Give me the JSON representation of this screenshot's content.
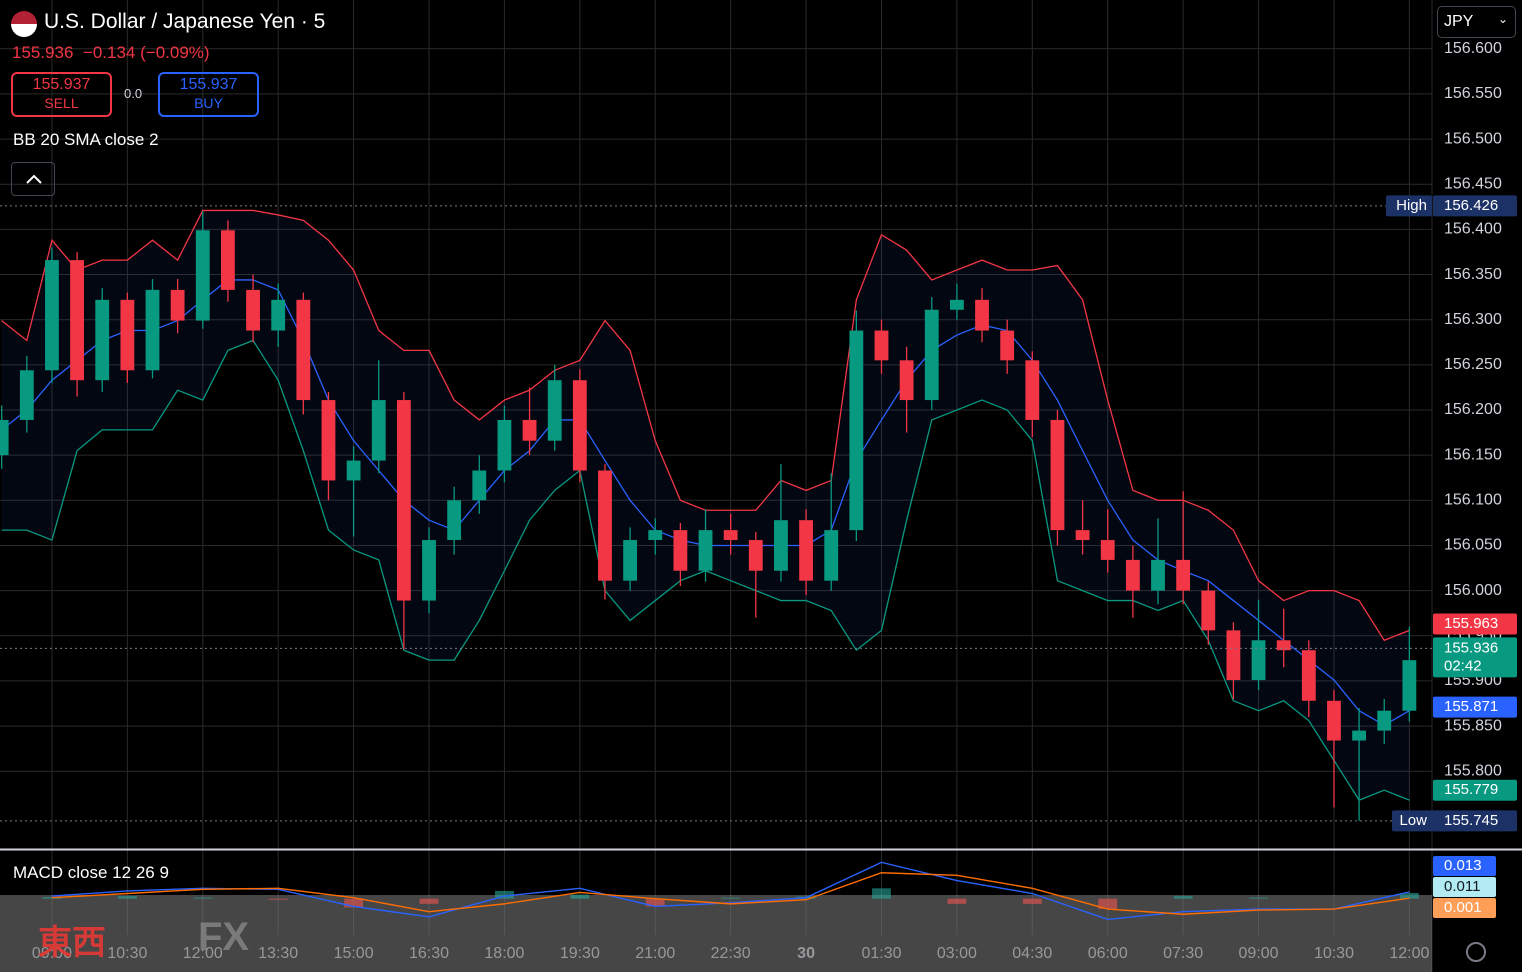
{
  "chart_data": {
    "type": "candlestick",
    "title": "U.S. Dollar / Japanese Yen · 5",
    "last_price": 155.936,
    "change_text": "−0.134 (−0.09%)",
    "sell_price": 155.937,
    "sell_label": "SELL",
    "spread": {
      "value": 0,
      "label": "0.0"
    },
    "buy_price": 155.937,
    "buy_label": "BUY",
    "indicator_label": "BB 20 SMA close 2",
    "currency": "JPY",
    "watermark": [
      "東西",
      "FX"
    ],
    "xlim": [
      -12.4,
      329.4
    ],
    "xticks": [
      {
        "value": 0,
        "label": "09:00"
      },
      {
        "value": 18,
        "label": "10:30"
      },
      {
        "value": 36,
        "label": "12:00"
      },
      {
        "value": 54,
        "label": "13:30"
      },
      {
        "value": 72,
        "label": "15:00"
      },
      {
        "value": 90,
        "label": "16:30"
      },
      {
        "value": 108,
        "label": "18:00"
      },
      {
        "value": 126,
        "label": "19:30"
      },
      {
        "value": 144,
        "label": "21:00"
      },
      {
        "value": 162,
        "label": "22:30"
      },
      {
        "value": 180,
        "label": "30"
      },
      {
        "value": 198,
        "label": "01:30"
      },
      {
        "value": 216,
        "label": "03:00"
      },
      {
        "value": 234,
        "label": "04:30"
      },
      {
        "value": 252,
        "label": "06:00"
      },
      {
        "value": 270,
        "label": "07:30"
      },
      {
        "value": 288,
        "label": "09:00"
      },
      {
        "value": 306,
        "label": "10:30"
      },
      {
        "value": 324,
        "label": "12:00"
      }
    ],
    "ylim": [
      155.715,
      156.654
    ],
    "yticks": [
      {
        "value": 156.6,
        "label": "156.600"
      },
      {
        "value": 156.55,
        "label": "156.550"
      },
      {
        "value": 156.5,
        "label": "156.500"
      },
      {
        "value": 156.45,
        "label": "156.450"
      },
      {
        "value": 156.4,
        "label": "156.400"
      },
      {
        "value": 156.35,
        "label": "156.350"
      },
      {
        "value": 156.3,
        "label": "156.300"
      },
      {
        "value": 156.25,
        "label": "156.250"
      },
      {
        "value": 156.2,
        "label": "156.200"
      },
      {
        "value": 156.15,
        "label": "156.150"
      },
      {
        "value": 156.1,
        "label": "156.100"
      },
      {
        "value": 156.05,
        "label": "156.050"
      },
      {
        "value": 156.0,
        "label": "156.000"
      },
      {
        "value": 155.95,
        "label": "155.950"
      },
      {
        "value": 155.9,
        "label": "155.900"
      },
      {
        "value": 155.85,
        "label": "155.850"
      },
      {
        "value": 155.8,
        "label": "155.800"
      }
    ],
    "grid": true,
    "up_color": "#089981",
    "down_color": "#f23645",
    "candles": {
      "x": [
        -12,
        -6,
        0,
        6,
        12,
        18,
        24,
        30,
        36,
        42,
        48,
        54,
        60,
        66,
        72,
        78,
        84,
        90,
        96,
        102,
        108,
        114,
        120,
        126,
        132,
        138,
        144,
        150,
        156,
        162,
        168,
        174,
        180,
        186,
        192,
        198,
        204,
        210,
        216,
        222,
        228,
        234,
        240,
        246,
        252,
        258,
        264,
        270,
        276,
        282,
        288,
        294,
        300,
        306,
        312,
        318,
        324
      ],
      "open": [
        156.15,
        156.189,
        156.244,
        156.366,
        156.233,
        156.322,
        156.244,
        156.333,
        156.299,
        156.399,
        156.333,
        156.288,
        156.322,
        156.211,
        156.122,
        156.144,
        156.211,
        155.989,
        156.056,
        156.1,
        156.133,
        156.189,
        156.166,
        156.233,
        156.133,
        156.011,
        156.056,
        156.067,
        156.022,
        156.067,
        156.056,
        156.022,
        156.078,
        156.011,
        156.067,
        156.288,
        156.255,
        156.211,
        156.311,
        156.322,
        156.288,
        156.255,
        156.189,
        156.067,
        156.056,
        156.034,
        156.0,
        156.034,
        156.0,
        155.956,
        155.901,
        155.945,
        155.934,
        155.878,
        155.834,
        155.845,
        155.867
      ],
      "high": [
        156.205,
        156.26,
        156.38,
        156.375,
        156.335,
        156.33,
        156.345,
        156.345,
        156.42,
        156.41,
        156.35,
        156.34,
        156.33,
        156.22,
        156.16,
        156.255,
        156.22,
        156.07,
        156.115,
        156.15,
        156.205,
        156.225,
        156.25,
        156.245,
        156.14,
        156.07,
        156.08,
        156.075,
        156.09,
        156.085,
        156.065,
        156.14,
        156.09,
        156.13,
        156.31,
        156.3,
        156.27,
        156.325,
        156.34,
        156.335,
        156.3,
        156.265,
        156.2,
        156.1,
        156.09,
        156.05,
        156.08,
        156.11,
        156.01,
        155.965,
        155.99,
        155.98,
        155.945,
        155.89,
        155.87,
        155.88,
        155.96
      ],
      "low": [
        156.135,
        156.175,
        156.23,
        156.215,
        156.22,
        156.23,
        156.235,
        156.285,
        156.29,
        156.32,
        156.275,
        156.27,
        156.195,
        156.1,
        156.06,
        156.13,
        155.935,
        155.975,
        156.04,
        156.085,
        156.12,
        156.15,
        156.155,
        156.12,
        155.99,
        156.0,
        156.04,
        156.005,
        156.01,
        156.04,
        155.97,
        156.01,
        155.995,
        156.0,
        156.055,
        156.24,
        156.175,
        156.2,
        156.3,
        156.275,
        156.24,
        156.17,
        156.05,
        156.04,
        156.02,
        155.97,
        155.985,
        155.985,
        155.94,
        155.88,
        155.89,
        155.915,
        155.86,
        155.76,
        155.745,
        155.83,
        155.855
      ],
      "close": [
        156.189,
        156.244,
        156.366,
        156.233,
        156.322,
        156.244,
        156.333,
        156.299,
        156.399,
        156.333,
        156.288,
        156.322,
        156.211,
        156.122,
        156.144,
        156.211,
        155.989,
        156.056,
        156.1,
        156.133,
        156.189,
        156.166,
        156.233,
        156.133,
        156.011,
        156.056,
        156.067,
        156.022,
        156.067,
        156.056,
        156.022,
        156.078,
        156.011,
        156.067,
        156.288,
        156.255,
        156.211,
        156.311,
        156.322,
        156.288,
        156.255,
        156.189,
        156.067,
        156.056,
        156.034,
        156.0,
        156.034,
        156.0,
        155.956,
        155.901,
        155.945,
        155.934,
        155.878,
        155.834,
        155.845,
        155.867,
        155.923
      ]
    },
    "bands": {
      "upper_color": "#f23645",
      "basis_color": "#2962ff",
      "lower_color": "#089981",
      "upper": [
        156.299,
        156.277,
        156.388,
        156.355,
        156.366,
        156.366,
        156.388,
        156.366,
        156.421,
        156.421,
        156.421,
        156.416,
        156.41,
        156.388,
        156.355,
        156.288,
        156.266,
        156.266,
        156.211,
        156.189,
        156.211,
        156.222,
        156.244,
        156.255,
        156.299,
        156.266,
        156.166,
        156.1,
        156.089,
        156.089,
        156.089,
        156.122,
        156.111,
        156.122,
        156.322,
        156.394,
        156.377,
        156.344,
        156.355,
        156.366,
        156.355,
        156.355,
        156.36,
        156.322,
        156.211,
        156.111,
        156.1,
        156.1,
        156.089,
        156.067,
        156.011,
        155.989,
        156.0,
        156.0,
        155.989,
        155.945,
        155.956
      ],
      "basis": [
        156.178,
        156.2,
        156.233,
        156.255,
        156.277,
        156.288,
        156.288,
        156.299,
        156.322,
        156.344,
        156.344,
        156.333,
        156.277,
        156.211,
        156.166,
        156.133,
        156.1,
        156.078,
        156.067,
        156.1,
        156.133,
        156.155,
        156.189,
        156.189,
        156.144,
        156.1,
        156.067,
        156.056,
        156.05,
        156.05,
        156.05,
        156.05,
        156.05,
        156.067,
        156.144,
        156.189,
        156.233,
        156.266,
        156.283,
        156.294,
        156.288,
        156.255,
        156.211,
        156.155,
        156.1,
        156.056,
        156.034,
        156.022,
        156.011,
        155.989,
        155.967,
        155.945,
        155.923,
        155.901,
        155.867,
        155.851,
        155.867
      ],
      "lower": [
        156.067,
        156.067,
        156.056,
        156.155,
        156.178,
        156.178,
        156.178,
        156.222,
        156.211,
        156.266,
        156.277,
        156.233,
        156.155,
        156.067,
        156.045,
        156.034,
        155.934,
        155.923,
        155.923,
        155.967,
        156.022,
        156.078,
        156.111,
        156.133,
        156.0,
        155.967,
        155.989,
        156.011,
        156.022,
        156.011,
        156.0,
        155.989,
        155.989,
        155.978,
        155.934,
        155.956,
        156.078,
        156.189,
        156.2,
        156.211,
        156.2,
        156.166,
        156.011,
        156.0,
        155.989,
        155.989,
        155.978,
        155.989,
        155.945,
        155.878,
        155.867,
        155.878,
        155.856,
        155.812,
        155.768,
        155.779,
        155.768
      ]
    },
    "price_badges": [
      {
        "value": 156.426,
        "tag": "High",
        "color": "#1c3166",
        "line": true
      },
      {
        "value": 155.963,
        "color": "#f23645",
        "line": false
      },
      {
        "value": 155.936,
        "sub": "02:42",
        "color": "#089981",
        "line": true
      },
      {
        "value": 155.871,
        "color": "#2962ff",
        "line": false
      },
      {
        "value": 155.779,
        "color": "#089981",
        "line": false
      },
      {
        "value": 155.745,
        "tag": "Low",
        "color": "#1c3166",
        "line": true
      }
    ],
    "macd": {
      "label": "MACD close 12 26 9",
      "ylim": [
        -0.07,
        0.09
      ],
      "x": [
        0,
        18,
        36,
        54,
        72,
        90,
        108,
        126,
        144,
        162,
        180,
        198,
        216,
        234,
        252,
        270,
        288,
        306,
        324
      ],
      "macd": [
        0.005,
        0.015,
        0.02,
        0.018,
        -0.015,
        -0.035,
        0.005,
        0.02,
        -0.015,
        -0.008,
        0.002,
        0.07,
        0.035,
        0.01,
        -0.04,
        -0.025,
        -0.02,
        -0.02,
        0.013
      ],
      "signal": [
        0.002,
        0.01,
        0.018,
        0.02,
        0.002,
        -0.025,
        -0.01,
        0.012,
        0.0,
        -0.01,
        -0.002,
        0.05,
        0.045,
        0.02,
        -0.02,
        -0.03,
        -0.022,
        -0.02,
        0.001
      ],
      "histogram": [
        0.003,
        0.005,
        0.002,
        -0.002,
        -0.017,
        -0.01,
        0.015,
        0.008,
        -0.015,
        0.002,
        0.004,
        0.02,
        -0.01,
        -0.01,
        -0.02,
        0.005,
        0.002,
        0.0,
        0.011
      ],
      "macd_color": "#2962ff",
      "signal_color": "#ff6d00",
      "hist_up": "#26a69a",
      "hist_down": "#ef5350",
      "badges": [
        {
          "value": 0.013,
          "color": "#2962ff",
          "text_color": "#ffffff"
        },
        {
          "value": 0.011,
          "color": "#b2ebf2",
          "text_color": "#131722"
        },
        {
          "value": 0.001,
          "color": "#ff9e57",
          "text_color": "#ffffff"
        }
      ]
    }
  }
}
